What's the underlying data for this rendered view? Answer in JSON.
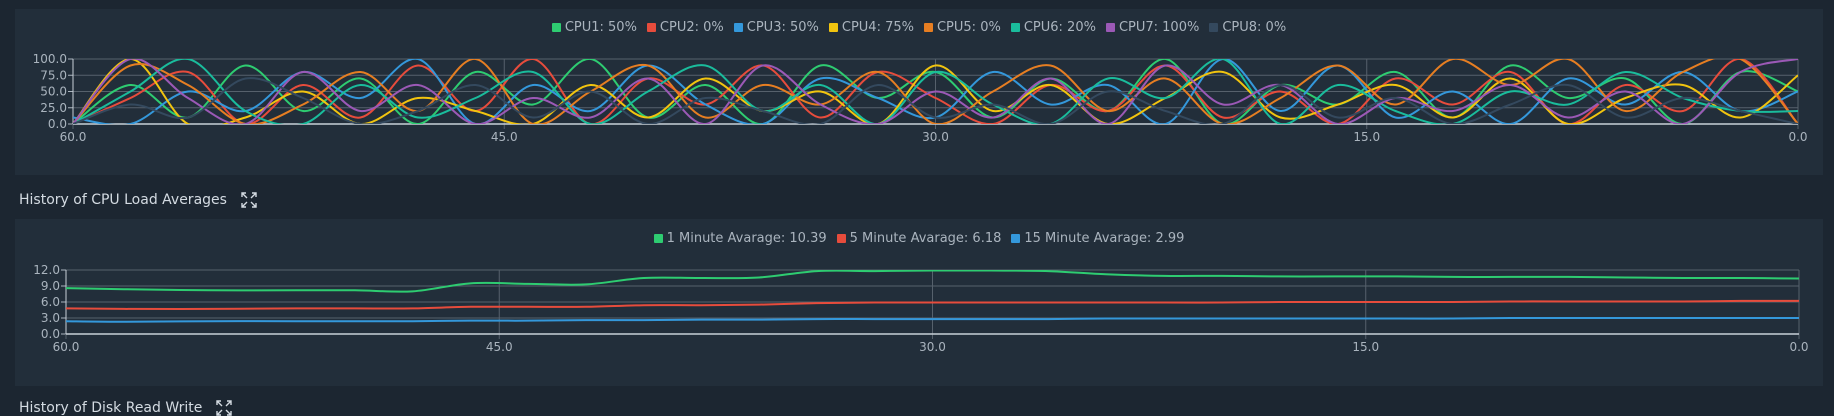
{
  "cpu_chart": {
    "legend": [
      {
        "label": "CPU1: 50%",
        "color": "#2ecc71"
      },
      {
        "label": "CPU2: 0%",
        "color": "#e74c3c"
      },
      {
        "label": "CPU3: 50%",
        "color": "#3498db"
      },
      {
        "label": "CPU4: 75%",
        "color": "#f1c40f"
      },
      {
        "label": "CPU5: 0%",
        "color": "#e67e22"
      },
      {
        "label": "CPU6: 20%",
        "color": "#1abc9c"
      },
      {
        "label": "CPU7: 100%",
        "color": "#9b59b6"
      },
      {
        "label": "CPU8: 0%",
        "color": "#34495e"
      }
    ]
  },
  "load_section": {
    "title": "History of CPU Load Averages",
    "icon": "expand-icon"
  },
  "load_chart": {
    "legend": [
      {
        "label": "1 Minute Avarage: 10.39",
        "color": "#2ecc71"
      },
      {
        "label": "5 Minute Avarage: 6.18",
        "color": "#e74c3c"
      },
      {
        "label": "15 Minute Avarage: 2.99",
        "color": "#3498db"
      }
    ]
  },
  "disk_section": {
    "title": "History of Disk Read Write",
    "icon": "expand-icon"
  },
  "chart_data": [
    {
      "type": "line",
      "xlim": [
        60,
        0
      ],
      "ylim": [
        0,
        100
      ],
      "xticks": [
        "60.0",
        "45.0",
        "30.0",
        "15.0",
        "0.0"
      ],
      "yticks": [
        "100.0",
        "75.0",
        "50.0",
        "25.0",
        "0.0"
      ],
      "series": [
        {
          "name": "CPU1: 50%",
          "color": "#2ecc71",
          "x": [
            60,
            58,
            56,
            54,
            52,
            50,
            48,
            46,
            44,
            42,
            40,
            38,
            36,
            34,
            32,
            30,
            28,
            26,
            24,
            22,
            20,
            18,
            16,
            14,
            12,
            10,
            8,
            6,
            4,
            2,
            0
          ],
          "values": [
            0,
            60,
            10,
            90,
            20,
            70,
            0,
            80,
            30,
            100,
            10,
            60,
            0,
            90,
            40,
            80,
            10,
            70,
            20,
            100,
            0,
            60,
            30,
            80,
            10,
            90,
            40,
            70,
            0,
            80,
            50
          ]
        },
        {
          "name": "CPU2: 0%",
          "color": "#e74c3c",
          "x": [
            60,
            58,
            56,
            54,
            52,
            50,
            48,
            46,
            44,
            42,
            40,
            38,
            36,
            34,
            32,
            30,
            28,
            26,
            24,
            22,
            20,
            18,
            16,
            14,
            12,
            10,
            8,
            6,
            4,
            2,
            0
          ],
          "values": [
            0,
            40,
            80,
            0,
            60,
            10,
            90,
            20,
            100,
            0,
            70,
            30,
            90,
            10,
            80,
            40,
            0,
            60,
            20,
            90,
            10,
            50,
            0,
            70,
            30,
            80,
            0,
            60,
            20,
            100,
            0
          ]
        },
        {
          "name": "CPU3: 50%",
          "color": "#3498db",
          "x": [
            60,
            58,
            56,
            54,
            52,
            50,
            48,
            46,
            44,
            42,
            40,
            38,
            36,
            34,
            32,
            30,
            28,
            26,
            24,
            22,
            20,
            18,
            16,
            14,
            12,
            10,
            8,
            6,
            4,
            2,
            0
          ],
          "values": [
            10,
            0,
            50,
            20,
            80,
            40,
            100,
            0,
            60,
            20,
            90,
            30,
            0,
            70,
            40,
            10,
            80,
            30,
            60,
            0,
            100,
            20,
            90,
            10,
            50,
            0,
            70,
            30,
            80,
            20,
            50
          ]
        },
        {
          "name": "CPU4: 75%",
          "color": "#f1c40f",
          "x": [
            60,
            58,
            56,
            54,
            52,
            50,
            48,
            46,
            44,
            42,
            40,
            38,
            36,
            34,
            32,
            30,
            28,
            26,
            24,
            22,
            20,
            18,
            16,
            14,
            12,
            10,
            8,
            6,
            4,
            2,
            0
          ],
          "values": [
            0,
            100,
            0,
            10,
            50,
            0,
            40,
            20,
            0,
            60,
            10,
            70,
            20,
            50,
            0,
            90,
            20,
            60,
            0,
            40,
            80,
            10,
            30,
            60,
            10,
            70,
            0,
            40,
            60,
            10,
            75
          ]
        },
        {
          "name": "CPU5: 0%",
          "color": "#e67e22",
          "x": [
            60,
            58,
            56,
            54,
            52,
            50,
            48,
            46,
            44,
            42,
            40,
            38,
            36,
            34,
            32,
            30,
            28,
            26,
            24,
            22,
            20,
            18,
            16,
            14,
            12,
            10,
            8,
            6,
            4,
            2,
            0
          ],
          "values": [
            0,
            90,
            60,
            0,
            30,
            80,
            20,
            100,
            0,
            50,
            90,
            10,
            60,
            30,
            80,
            0,
            50,
            90,
            20,
            70,
            0,
            40,
            90,
            30,
            100,
            60,
            100,
            20,
            80,
            100,
            0
          ]
        },
        {
          "name": "CPU6: 20%",
          "color": "#1abc9c",
          "x": [
            60,
            58,
            56,
            54,
            52,
            50,
            48,
            46,
            44,
            42,
            40,
            38,
            36,
            34,
            32,
            30,
            28,
            26,
            24,
            22,
            20,
            18,
            16,
            14,
            12,
            10,
            8,
            6,
            4,
            2,
            0
          ],
          "values": [
            0,
            50,
            100,
            20,
            0,
            60,
            10,
            40,
            80,
            0,
            50,
            90,
            20,
            60,
            0,
            80,
            30,
            0,
            70,
            40,
            100,
            0,
            60,
            20,
            0,
            50,
            30,
            80,
            40,
            20,
            20
          ]
        },
        {
          "name": "CPU7: 100%",
          "color": "#9b59b6",
          "x": [
            60,
            58,
            56,
            54,
            52,
            50,
            48,
            46,
            44,
            42,
            40,
            38,
            36,
            34,
            32,
            30,
            28,
            26,
            24,
            22,
            20,
            18,
            16,
            14,
            12,
            10,
            8,
            6,
            4,
            2,
            0
          ],
          "values": [
            0,
            100,
            40,
            0,
            80,
            20,
            60,
            0,
            40,
            10,
            70,
            0,
            90,
            30,
            0,
            50,
            10,
            70,
            0,
            90,
            30,
            60,
            0,
            40,
            20,
            60,
            10,
            50,
            0,
            80,
            100
          ]
        },
        {
          "name": "CPU8: 0%",
          "color": "#34495e",
          "x": [
            60,
            58,
            56,
            54,
            52,
            50,
            48,
            46,
            44,
            42,
            40,
            38,
            36,
            34,
            32,
            30,
            28,
            26,
            24,
            22,
            20,
            18,
            16,
            14,
            12,
            10,
            8,
            6,
            4,
            2,
            0
          ],
          "values": [
            0,
            30,
            10,
            70,
            40,
            0,
            20,
            60,
            10,
            50,
            0,
            40,
            20,
            0,
            60,
            10,
            30,
            0,
            50,
            20,
            0,
            60,
            10,
            40,
            0,
            30,
            60,
            10,
            40,
            20,
            0
          ]
        }
      ]
    },
    {
      "type": "line",
      "xlim": [
        60,
        0
      ],
      "ylim": [
        0,
        12
      ],
      "xticks": [
        "60.0",
        "45.0",
        "30.0",
        "15.0",
        "0.0"
      ],
      "yticks": [
        "12.0",
        "9.0",
        "6.0",
        "3.0",
        "0.0"
      ],
      "series": [
        {
          "name": "1 Minute Avarage: 10.39",
          "color": "#2ecc71",
          "x": [
            60,
            58,
            55,
            52,
            50,
            48,
            46,
            44,
            42,
            40,
            38,
            36,
            34,
            32,
            30,
            28,
            26,
            24,
            22,
            20,
            18,
            16,
            14,
            12,
            10,
            8,
            6,
            4,
            2,
            0
          ],
          "values": [
            8.6,
            8.4,
            8.2,
            8.2,
            8.2,
            8.0,
            9.5,
            9.4,
            9.3,
            10.5,
            10.5,
            10.6,
            11.8,
            11.8,
            11.9,
            11.9,
            11.8,
            11.2,
            10.9,
            10.9,
            10.8,
            10.8,
            10.8,
            10.7,
            10.7,
            10.7,
            10.6,
            10.5,
            10.5,
            10.4
          ]
        },
        {
          "name": "5 Minute Avarage: 6.18",
          "color": "#e74c3c",
          "x": [
            60,
            58,
            55,
            52,
            50,
            48,
            46,
            44,
            42,
            40,
            38,
            36,
            34,
            32,
            30,
            28,
            26,
            24,
            22,
            20,
            18,
            16,
            14,
            12,
            10,
            8,
            6,
            4,
            2,
            0
          ],
          "values": [
            4.8,
            4.7,
            4.7,
            4.8,
            4.8,
            4.8,
            5.1,
            5.1,
            5.1,
            5.4,
            5.4,
            5.5,
            5.8,
            5.9,
            5.9,
            5.9,
            5.9,
            5.9,
            5.9,
            5.9,
            6.0,
            6.0,
            6.0,
            6.0,
            6.1,
            6.1,
            6.1,
            6.1,
            6.2,
            6.2
          ]
        },
        {
          "name": "15 Minute Avarage: 2.99",
          "color": "#3498db",
          "x": [
            60,
            58,
            55,
            52,
            50,
            48,
            46,
            44,
            42,
            40,
            38,
            36,
            34,
            32,
            30,
            28,
            26,
            24,
            22,
            20,
            18,
            16,
            14,
            12,
            10,
            8,
            6,
            4,
            2,
            0
          ],
          "values": [
            2.4,
            2.3,
            2.4,
            2.4,
            2.4,
            2.4,
            2.5,
            2.5,
            2.6,
            2.6,
            2.7,
            2.7,
            2.8,
            2.8,
            2.8,
            2.8,
            2.8,
            2.9,
            2.9,
            2.9,
            2.9,
            2.9,
            2.9,
            2.9,
            3.0,
            3.0,
            3.0,
            3.0,
            3.0,
            3.0
          ]
        }
      ]
    }
  ]
}
